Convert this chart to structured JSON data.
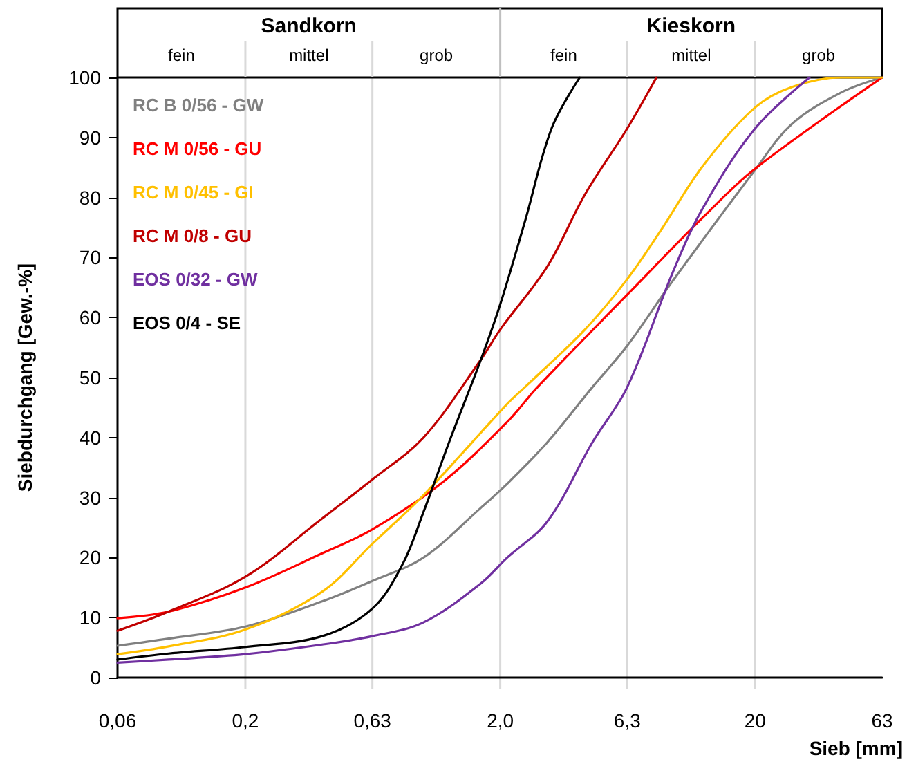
{
  "chart_data": {
    "type": "line",
    "xlabel": "Sieb [mm]",
    "ylabel": "Siebdurchgang [Gew.-%]",
    "log": "x",
    "xlim": [
      0.063,
      63
    ],
    "xticks": [
      {
        "value": 0.063,
        "label": "0,06"
      },
      {
        "value": 0.2,
        "label": "0,2"
      },
      {
        "value": 0.63,
        "label": "0,63"
      },
      {
        "value": 2.0,
        "label": "2,0"
      },
      {
        "value": 6.3,
        "label": "6,3"
      },
      {
        "value": 20,
        "label": "20"
      },
      {
        "value": 63,
        "label": "63"
      }
    ],
    "ylim": [
      0,
      100
    ],
    "yticks": [
      0,
      10,
      20,
      30,
      40,
      50,
      60,
      70,
      80,
      90,
      100
    ],
    "grid": "x",
    "legend": "top left",
    "marker": "none",
    "line_style": "solid",
    "annotations": [
      "Sandkorn",
      "Kieskorn",
      "fein",
      "mittel",
      "grob",
      "fein",
      "mittel",
      "grob"
    ],
    "series": [
      {
        "name": "RC B 0/56 - GW",
        "color": "#808080",
        "x": [
          0.063,
          0.1,
          0.2,
          0.4,
          0.63,
          1.0,
          1.68,
          2.13,
          3.06,
          4.6,
          6.3,
          9.5,
          20,
          27.8,
          43.6,
          63
        ],
        "values": [
          5.3,
          6.5,
          8.5,
          12.7,
          16.1,
          20,
          28.3,
          32.3,
          39.2,
          48.4,
          55.3,
          66.1,
          84.6,
          92.2,
          97.5,
          100
        ]
      },
      {
        "name": "RC M 0/56 - GU",
        "color": "#ff0000",
        "x": [
          0.063,
          0.1,
          0.2,
          0.4,
          0.63,
          1.2,
          2.13,
          2.8,
          6.3,
          12.5,
          20,
          63
        ],
        "values": [
          9.9,
          11,
          15,
          20.7,
          24.7,
          32.7,
          42.6,
          48.4,
          63.8,
          76.7,
          84.8,
          100
        ]
      },
      {
        "name": "RC M 0/45 - GI",
        "color": "#ffc000",
        "x": [
          0.063,
          0.1,
          0.2,
          0.4,
          0.63,
          1.0,
          2.13,
          2.5,
          4.3,
          6.3,
          8.5,
          12.5,
          20,
          27.8,
          43.6,
          63
        ],
        "values": [
          3.9,
          5.2,
          8,
          14.3,
          22.3,
          30.4,
          45.6,
          48.4,
          58,
          66.4,
          74.4,
          85.3,
          95,
          98.4,
          100,
          100
        ]
      },
      {
        "name": "RC M 0/8 - GU",
        "color": "#c00000",
        "x": [
          0.063,
          0.1,
          0.2,
          0.4,
          0.63,
          1.0,
          1.68,
          2.0,
          3.06,
          4.3,
          6.3,
          8.2
        ],
        "values": [
          7.8,
          11,
          16.8,
          26.5,
          33,
          40,
          53,
          58,
          68.5,
          80.5,
          91.5,
          100
        ]
      },
      {
        "name": "EOS 0/32 - GW",
        "color": "#7030a0",
        "x": [
          0.063,
          0.1,
          0.2,
          0.4,
          0.63,
          1.0,
          1.68,
          2.13,
          3.06,
          4.6,
          6.3,
          9.5,
          12.5,
          20,
          32.7
        ],
        "values": [
          2.5,
          3,
          3.9,
          5.5,
          6.9,
          9.2,
          15.7,
          20,
          26,
          39.2,
          48.4,
          67.5,
          78.3,
          91.5,
          100
        ]
      },
      {
        "name": "EOS 0/4 - SE",
        "color": "#000000",
        "x": [
          0.063,
          0.1,
          0.2,
          0.4,
          0.63,
          0.83,
          1.0,
          1.28,
          1.68,
          2.0,
          2.5,
          3.18,
          4.1
        ],
        "values": [
          3,
          4,
          5.1,
          6.9,
          11.5,
          19,
          27.6,
          40,
          53,
          62.2,
          76,
          91.5,
          100
        ]
      }
    ]
  }
}
